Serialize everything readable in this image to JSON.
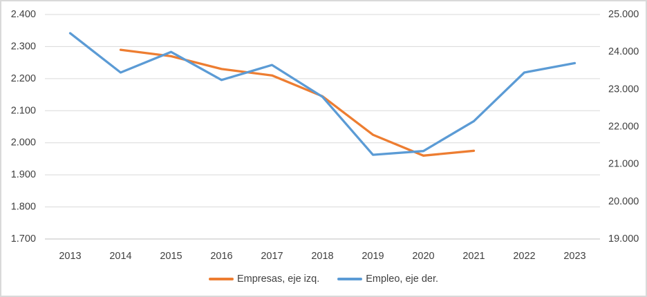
{
  "chart_data": {
    "type": "line",
    "title": "",
    "x": [
      "2013",
      "2014",
      "2015",
      "2016",
      "2017",
      "2018",
      "2019",
      "2020",
      "2021",
      "2022",
      "2023"
    ],
    "series": [
      {
        "name": "Empresas, eje izq.",
        "axis": "left",
        "color": "#ED7D31",
        "values": [
          null,
          2290,
          2270,
          2230,
          2210,
          2145,
          2025,
          1960,
          1975,
          null,
          null
        ]
      },
      {
        "name": "Empleo, eje der.",
        "axis": "right",
        "color": "#5B9BD5",
        "values": [
          24500,
          23450,
          24000,
          23250,
          23650,
          22800,
          21250,
          21350,
          22150,
          23450,
          23700
        ]
      }
    ],
    "left_axis": {
      "min": 1700,
      "max": 2400,
      "tick_labels": [
        "2.400",
        "2.300",
        "2.200",
        "2.100",
        "2.000",
        "1.900",
        "1.800",
        "1.700"
      ]
    },
    "right_axis": {
      "min": 19000,
      "max": 25000,
      "tick_labels": [
        "25.000",
        "24.000",
        "23.000",
        "22.000",
        "21.000",
        "20.000",
        "19.000"
      ]
    },
    "grid": true,
    "legend_position": "bottom",
    "colors": {
      "gridline": "#D9D9D9",
      "axis_line": "#BFBFBF",
      "tick_text": "#404040",
      "frame_border": "#D9D9D9"
    }
  }
}
